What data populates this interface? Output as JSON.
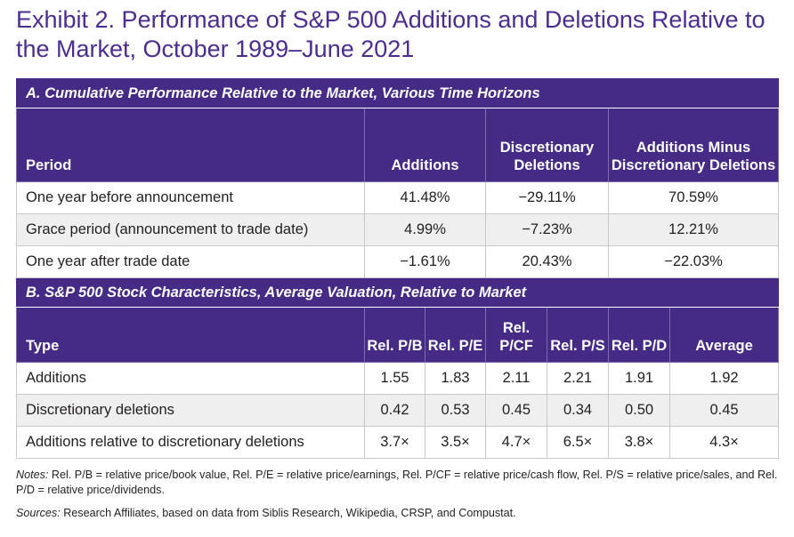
{
  "title": "Exhibit 2. Performance of S&P 500 Additions and Deletions Relative to the Market, October 1989–June 2021",
  "section_a": {
    "heading": "A. Cumulative Performance Relative to the Market, Various Time Horizons",
    "columns": [
      "Period",
      "Additions",
      "Discretionary Deletions",
      "Additions Minus Discretionary Deletions"
    ],
    "rows": [
      [
        "One year before announcement",
        "41.48%",
        "−29.11%",
        "70.59%"
      ],
      [
        "Grace period (announcement to trade date)",
        "4.99%",
        "−7.23%",
        "12.21%"
      ],
      [
        "One year after trade date",
        "−1.61%",
        "20.43%",
        "−22.03%"
      ]
    ]
  },
  "section_b": {
    "heading": "B. S&P 500 Stock Characteristics, Average Valuation, Relative to Market",
    "columns": [
      "Type",
      "Rel. P/B",
      "Rel. P/E",
      "Rel. P/CF",
      "Rel. P/S",
      "Rel. P/D",
      "Average"
    ],
    "rows": [
      [
        "Additions",
        "1.55",
        "1.83",
        "2.11",
        "2.21",
        "1.91",
        "1.92"
      ],
      [
        "Discretionary deletions",
        "0.42",
        "0.53",
        "0.45",
        "0.34",
        "0.50",
        "0.45"
      ],
      [
        "Additions relative to discretionary deletions",
        "3.7×",
        "3.5×",
        "4.7×",
        "6.5×",
        "3.8×",
        "4.3×"
      ]
    ]
  },
  "notes_label": "Notes:",
  "notes_text": " Rel. P/B = relative price/book value, Rel. P/E = relative price/earnings, Rel. P/CF = relative price/cash flow, Rel. P/S = relative price/sales, and Rel. P/D = relative price/dividends.",
  "sources_label": "Sources:",
  "sources_text": " Research Affiliates, based on data from Siblis Research, Wikipedia, CRSP, and Compustat.",
  "colors": {
    "header_bg": "#452a86",
    "title": "#4b2d8f",
    "alt_row": "#efefef"
  }
}
